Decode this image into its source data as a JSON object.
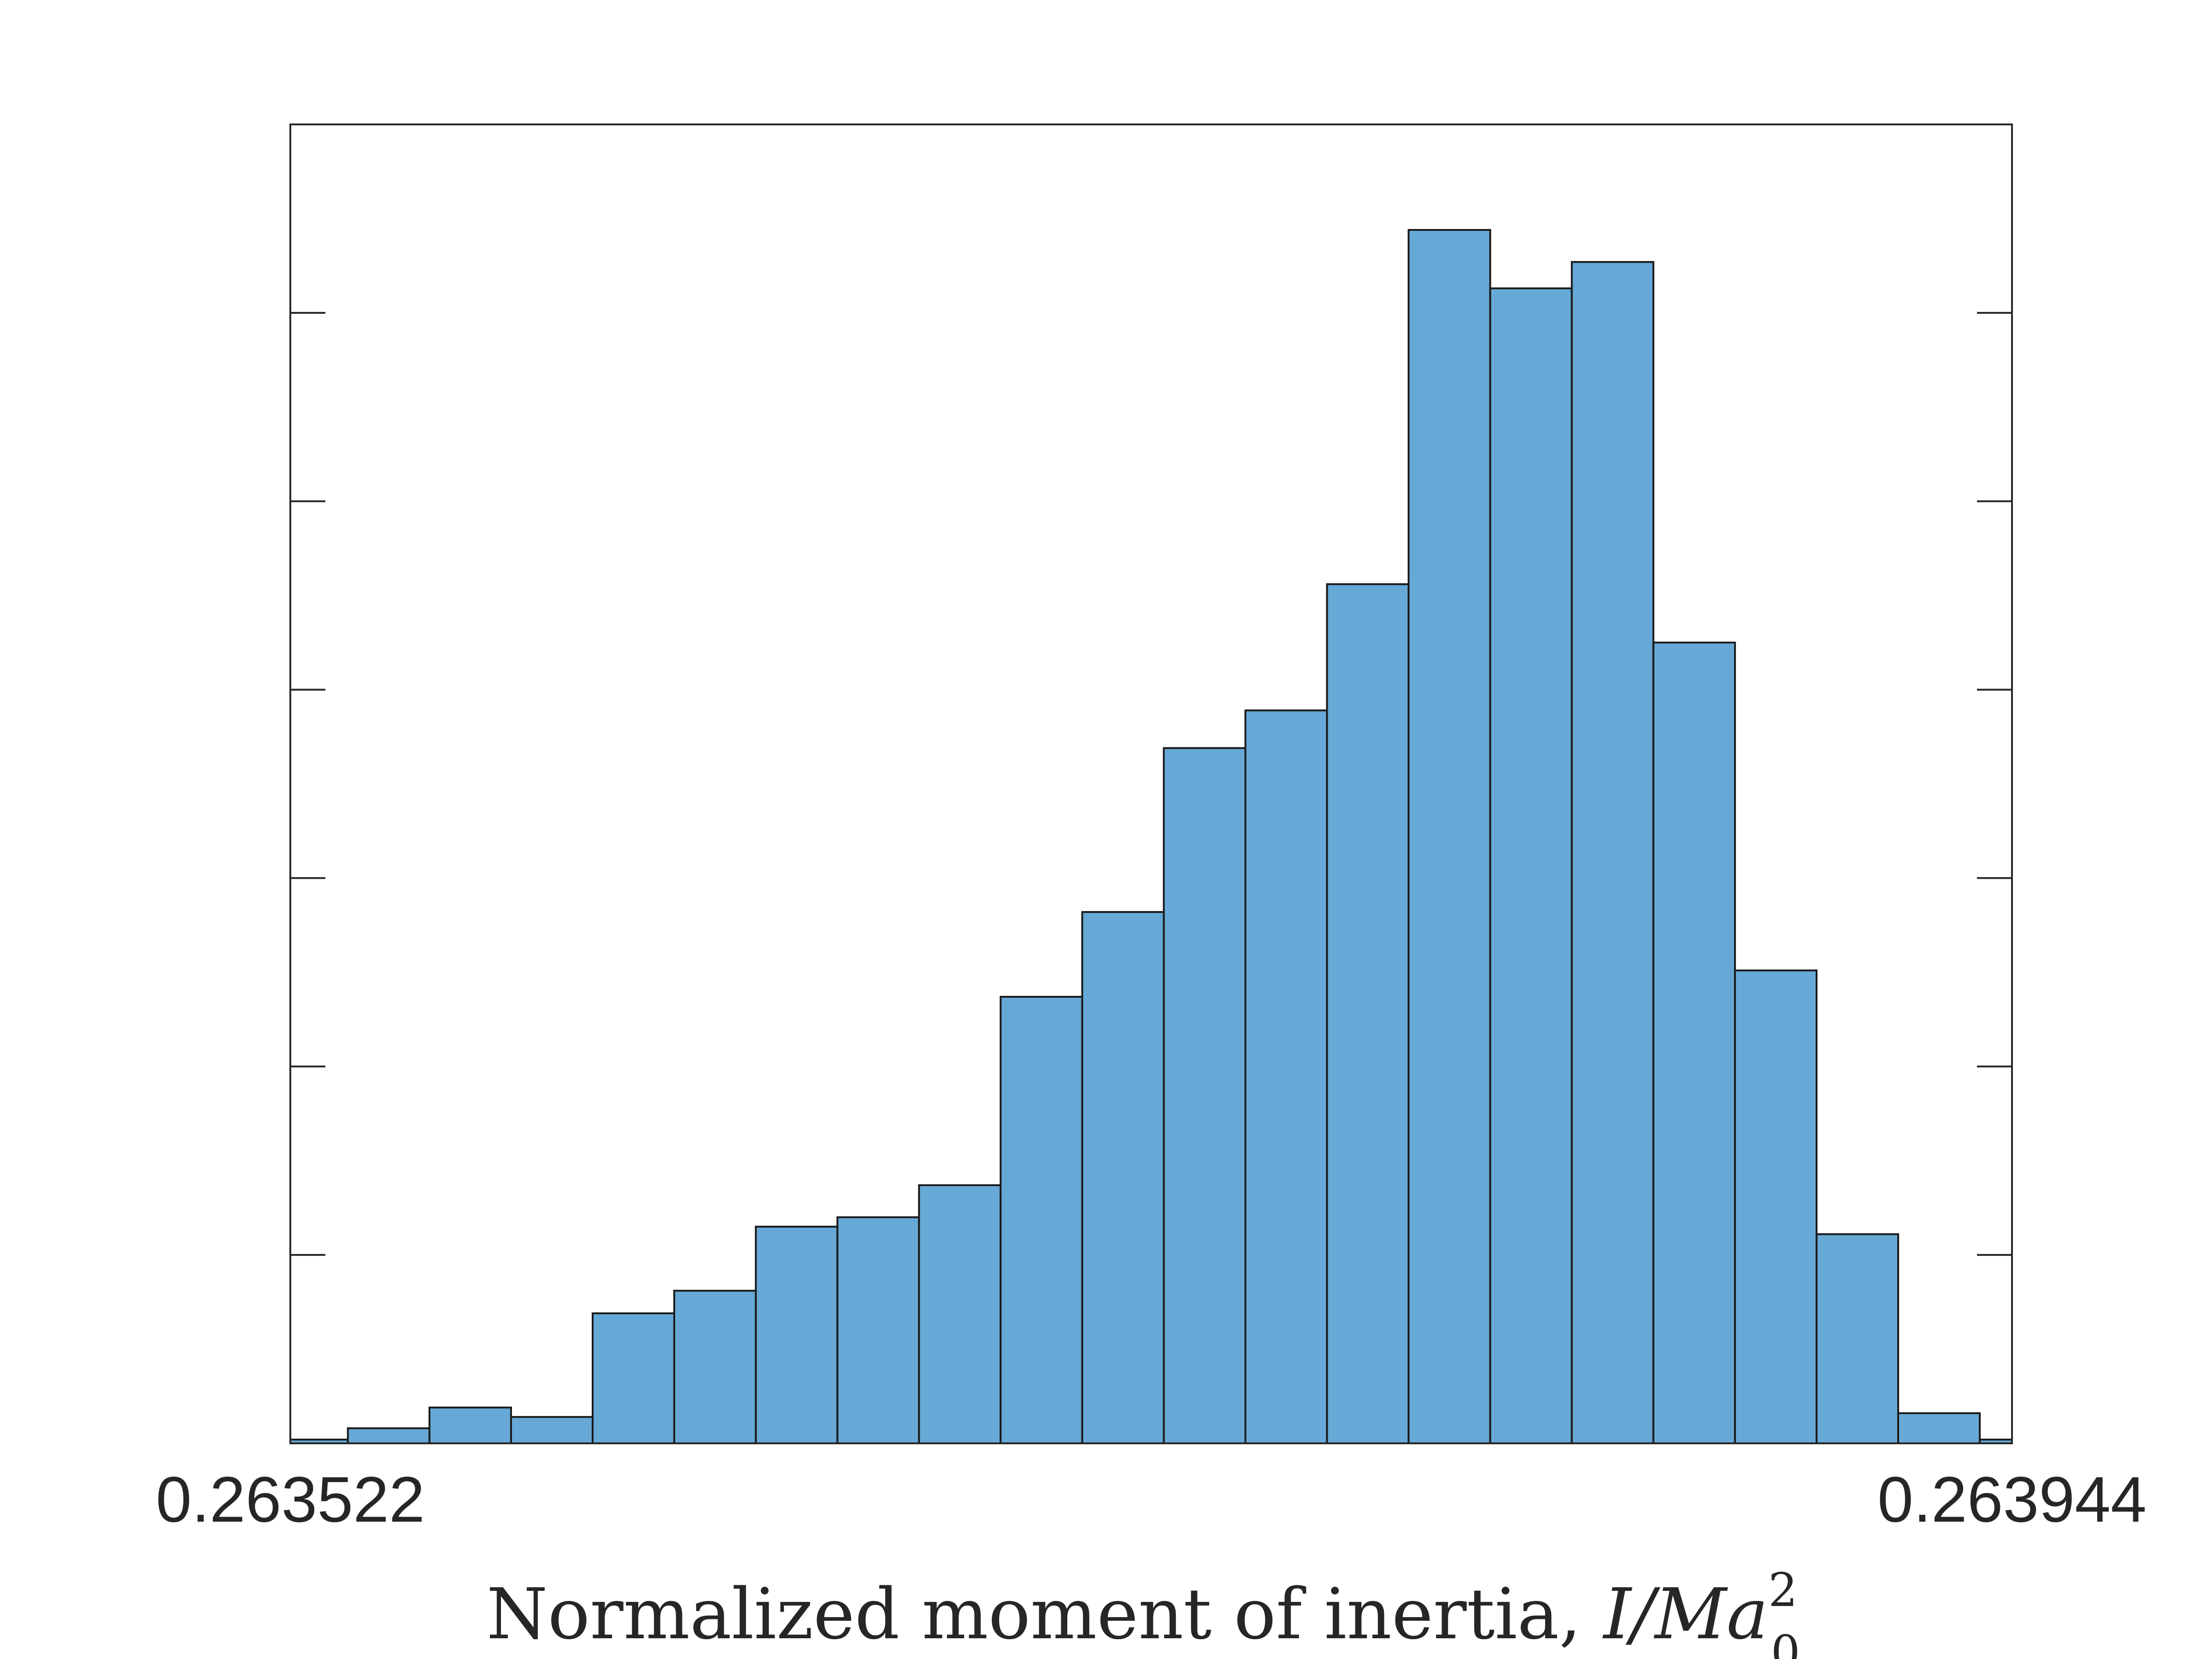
{
  "chart_data": {
    "type": "bar",
    "title": "",
    "xlabel": "Normalized moment of inertia, I/Ma_0^2",
    "xlabel_parts": {
      "text": "Normalized moment of inertia, ",
      "math_main": "I/Ma",
      "math_sub": "0",
      "math_sup": "2"
    },
    "ylabel": "",
    "x_tick_labels": [
      "0.263522",
      "0.263944"
    ],
    "xlim": [
      0.263522,
      0.263944
    ],
    "ylim": [
      0,
      7.0
    ],
    "y_ticks": [
      0,
      1,
      2,
      3,
      4,
      5,
      6
    ],
    "y_tick_labels_shown": false,
    "grid": false,
    "legend": "none",
    "bar_color": "#66A9D6",
    "edge_color": "#1a1a1a",
    "bins": [
      {
        "x0": 0.2635182,
        "x1": 0.2635361,
        "value": 0.02
      },
      {
        "x0": 0.2635361,
        "x1": 0.2635561,
        "value": 0.08
      },
      {
        "x0": 0.2635561,
        "x1": 0.2635761,
        "value": 0.19
      },
      {
        "x0": 0.2635761,
        "x1": 0.2635961,
        "value": 0.14
      },
      {
        "x0": 0.2635961,
        "x1": 0.2636161,
        "value": 0.69
      },
      {
        "x0": 0.2636161,
        "x1": 0.2636361,
        "value": 0.81
      },
      {
        "x0": 0.2636361,
        "x1": 0.2636561,
        "value": 1.15
      },
      {
        "x0": 0.2636561,
        "x1": 0.2636761,
        "value": 1.2
      },
      {
        "x0": 0.2636761,
        "x1": 0.2636961,
        "value": 1.37
      },
      {
        "x0": 0.2636961,
        "x1": 0.2637161,
        "value": 2.37
      },
      {
        "x0": 0.2637161,
        "x1": 0.2637361,
        "value": 2.82
      },
      {
        "x0": 0.2637361,
        "x1": 0.2637561,
        "value": 3.69
      },
      {
        "x0": 0.2637561,
        "x1": 0.2637761,
        "value": 3.89
      },
      {
        "x0": 0.2637761,
        "x1": 0.2637961,
        "value": 4.56
      },
      {
        "x0": 0.2637961,
        "x1": 0.2638161,
        "value": 6.44
      },
      {
        "x0": 0.2638161,
        "x1": 0.2638361,
        "value": 6.13
      },
      {
        "x0": 0.2638361,
        "x1": 0.2638561,
        "value": 6.27
      },
      {
        "x0": 0.2638561,
        "x1": 0.2638761,
        "value": 4.25
      },
      {
        "x0": 0.2638761,
        "x1": 0.2638961,
        "value": 2.51
      },
      {
        "x0": 0.2638961,
        "x1": 0.2639161,
        "value": 1.11
      },
      {
        "x0": 0.2639161,
        "x1": 0.2639361,
        "value": 0.16
      },
      {
        "x0": 0.2639361,
        "x1": 0.2639561,
        "value": 0.02
      }
    ]
  }
}
